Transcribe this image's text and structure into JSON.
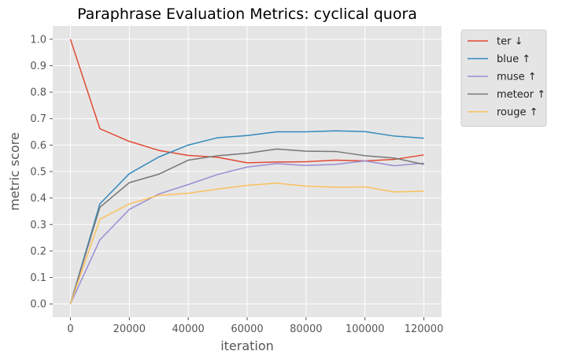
{
  "chart_data": {
    "type": "line",
    "title": "Paraphrase Evaluation Metrics: cyclical quora",
    "xlabel": "iteration",
    "ylabel": "metric score",
    "xlim": [
      -6000,
      126000
    ],
    "ylim": [
      -0.05,
      1.05
    ],
    "x_ticks": [
      0,
      20000,
      40000,
      60000,
      80000,
      100000,
      120000
    ],
    "y_ticks": [
      "0.0",
      "0.1",
      "0.2",
      "0.3",
      "0.4",
      "0.5",
      "0.6",
      "0.7",
      "0.8",
      "0.9",
      "1.0"
    ],
    "grid": true,
    "legend_position": "outside-top-right",
    "x": [
      0,
      10000,
      20000,
      30000,
      40000,
      50000,
      60000,
      70000,
      80000,
      90000,
      100000,
      110000,
      120000
    ],
    "series": [
      {
        "name": "ter ↓",
        "color": "#E24A33",
        "values": [
          1.0,
          0.662,
          0.614,
          0.58,
          0.561,
          0.554,
          0.533,
          0.536,
          0.537,
          0.543,
          0.54,
          0.546,
          0.563
        ]
      },
      {
        "name": "blue ↑",
        "color": "#348ABD",
        "values": [
          0.0,
          0.378,
          0.492,
          0.555,
          0.6,
          0.628,
          0.636,
          0.65,
          0.65,
          0.654,
          0.651,
          0.634,
          0.626
        ]
      },
      {
        "name": "muse ↑",
        "color": "#988ED5",
        "values": [
          0.0,
          0.242,
          0.357,
          0.415,
          0.451,
          0.489,
          0.517,
          0.53,
          0.523,
          0.527,
          0.54,
          0.522,
          0.532
        ]
      },
      {
        "name": "meteor ↑",
        "color": "#777777",
        "values": [
          0.0,
          0.365,
          0.458,
          0.49,
          0.543,
          0.56,
          0.569,
          0.585,
          0.577,
          0.576,
          0.56,
          0.551,
          0.527
        ]
      },
      {
        "name": "rouge ↑",
        "color": "#FBC15E",
        "values": [
          0.0,
          0.32,
          0.378,
          0.41,
          0.418,
          0.434,
          0.448,
          0.456,
          0.445,
          0.441,
          0.442,
          0.423,
          0.426
        ]
      }
    ]
  }
}
